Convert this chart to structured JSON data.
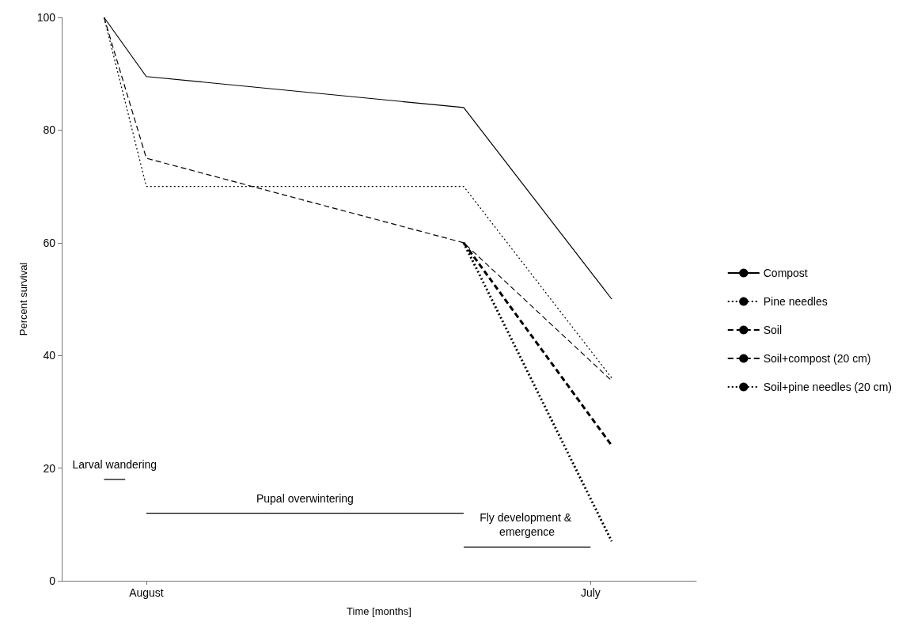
{
  "chart_data": {
    "type": "line",
    "xlabel": "Time [months]",
    "ylabel": "Percent survival",
    "categories": [
      null,
      null,
      null,
      null,
      "August",
      null,
      null,
      null,
      null,
      null,
      null,
      null,
      null,
      null,
      null,
      null,
      null,
      null,
      null,
      null,
      null,
      null,
      null,
      null,
      null,
      "July",
      null,
      null,
      null,
      null,
      null
    ],
    "ylim": [
      0,
      100
    ],
    "yticks": [
      0,
      20,
      40,
      60,
      80,
      100
    ],
    "grid": false,
    "legend": "right",
    "marker": "none",
    "series": [
      {
        "name": "Compost",
        "color": "#000000",
        "line_style": "solid",
        "values": [
          null,
          null,
          100,
          null,
          89.5,
          null,
          null,
          null,
          null,
          null,
          null,
          null,
          null,
          null,
          null,
          null,
          null,
          null,
          null,
          84,
          null,
          null,
          null,
          null,
          null,
          null,
          50,
          null,
          null,
          null,
          null
        ]
      },
      {
        "name": "Pine needles",
        "color": "#000000",
        "line_style": "dotted",
        "values": [
          null,
          null,
          100,
          null,
          70,
          null,
          null,
          null,
          null,
          null,
          null,
          null,
          null,
          null,
          null,
          null,
          null,
          null,
          null,
          70,
          null,
          null,
          null,
          null,
          null,
          null,
          36,
          null,
          null,
          null,
          null
        ]
      },
      {
        "name": "Soil",
        "color": "#000000",
        "line_style": "dashed",
        "values": [
          null,
          null,
          100,
          null,
          75,
          null,
          null,
          null,
          null,
          null,
          null,
          null,
          null,
          null,
          null,
          null,
          null,
          null,
          null,
          60,
          null,
          null,
          null,
          null,
          null,
          null,
          35.5,
          null,
          null,
          null,
          null
        ]
      },
      {
        "name": "Soil+compost (20 cm)",
        "color": "#000000",
        "line_style": "dashed",
        "values": [
          null,
          null,
          null,
          null,
          null,
          null,
          null,
          null,
          null,
          null,
          null,
          null,
          null,
          null,
          null,
          null,
          null,
          null,
          null,
          60,
          null,
          null,
          null,
          null,
          null,
          null,
          24,
          null,
          null,
          null,
          null
        ]
      },
      {
        "name": "Soil+pine needles (20 cm)",
        "color": "#000000",
        "line_style": "dotted",
        "values": [
          null,
          null,
          null,
          null,
          null,
          null,
          null,
          null,
          null,
          null,
          null,
          null,
          null,
          null,
          null,
          null,
          null,
          null,
          null,
          60,
          null,
          null,
          null,
          null,
          null,
          null,
          7,
          null,
          null,
          null,
          null
        ]
      },
      {
        "color": "#000000",
        "line_style": "solid",
        "values": [
          null,
          null,
          18,
          18,
          null,
          null,
          null,
          null,
          null,
          null,
          null,
          null,
          null,
          null,
          null,
          null,
          null,
          null,
          null,
          null,
          null,
          null,
          null,
          null,
          null,
          null,
          null,
          null,
          null,
          null,
          null
        ]
      },
      {
        "color": "#000000",
        "line_style": "solid",
        "values": [
          null,
          null,
          null,
          null,
          12,
          null,
          null,
          null,
          null,
          null,
          null,
          null,
          null,
          null,
          null,
          null,
          null,
          null,
          null,
          12,
          null,
          null,
          null,
          null,
          null,
          null,
          null,
          null,
          null,
          null,
          null
        ]
      },
      {
        "color": "#000000",
        "line_style": "solid",
        "values": [
          null,
          null,
          null,
          null,
          null,
          null,
          null,
          null,
          null,
          null,
          null,
          null,
          null,
          null,
          null,
          null,
          null,
          null,
          null,
          6,
          null,
          null,
          null,
          null,
          null,
          6,
          null,
          null,
          null,
          null,
          null
        ]
      }
    ],
    "annotations": [
      "Larval wandering",
      "Pupal overwintering",
      "Fly development & emergence"
    ]
  }
}
